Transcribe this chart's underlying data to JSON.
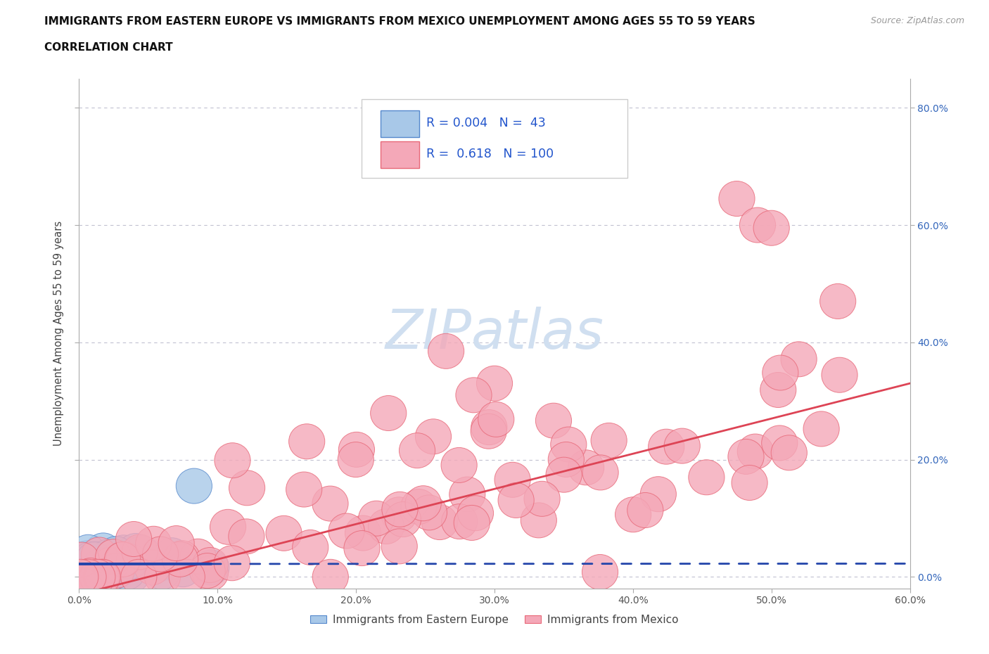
{
  "title_line1": "IMMIGRANTS FROM EASTERN EUROPE VS IMMIGRANTS FROM MEXICO UNEMPLOYMENT AMONG AGES 55 TO 59 YEARS",
  "title_line2": "CORRELATION CHART",
  "source": "Source: ZipAtlas.com",
  "ylabel": "Unemployment Among Ages 55 to 59 years",
  "xlim": [
    0.0,
    0.6
  ],
  "ylim": [
    -0.02,
    0.85
  ],
  "xtick_labels": [
    "0.0%",
    "10.0%",
    "20.0%",
    "30.0%",
    "40.0%",
    "50.0%",
    "60.0%"
  ],
  "xtick_values": [
    0.0,
    0.1,
    0.2,
    0.3,
    0.4,
    0.5,
    0.6
  ],
  "ytick_labels": [
    "0.0%",
    "20.0%",
    "40.0%",
    "60.0%",
    "80.0%"
  ],
  "ytick_values": [
    0.0,
    0.2,
    0.4,
    0.6,
    0.8
  ],
  "legend_labels": [
    "Immigrants from Eastern Europe",
    "Immigrants from Mexico"
  ],
  "ee_color": "#a8c8e8",
  "mx_color": "#f4a8b8",
  "ee_edge_color": "#5588cc",
  "mx_edge_color": "#e86878",
  "ee_line_color": "#2244aa",
  "mx_line_color": "#dd4455",
  "watermark_color": "#d0dff0",
  "background_color": "#ffffff",
  "grid_color": "#bbbbcc",
  "ee_R": 0.004,
  "ee_N": 43,
  "mx_R": 0.618,
  "mx_N": 100,
  "ee_line_y_intercept": 0.022,
  "ee_line_slope": 0.001,
  "mx_line_y_intercept": -0.03,
  "mx_line_slope": 0.6
}
